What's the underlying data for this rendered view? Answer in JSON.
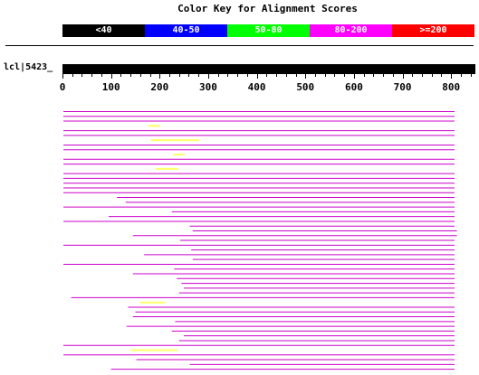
{
  "title": "Color Key for Alignment Scores",
  "color_key": [
    {
      "label": "<40",
      "bg": "#000000",
      "fg": "#ffffff"
    },
    {
      "label": "40-50",
      "bg": "#0000ff",
      "fg": "#ffffff"
    },
    {
      "label": "50-80",
      "bg": "#00ff00",
      "fg": "#ffffff"
    },
    {
      "label": "80-200",
      "bg": "#ff00ff",
      "fg": "#ffffff"
    },
    {
      "label": ">=200",
      "bg": "#ff0000",
      "fg": "#ffffff"
    }
  ],
  "query": {
    "label": "lcl|5423_",
    "length": 850
  },
  "axis": {
    "ticks": [
      0,
      100,
      200,
      300,
      400,
      500,
      600,
      700,
      800
    ],
    "max": 850
  },
  "colors": {
    "hit": "#cc00cc",
    "hit_alt": "#ffff66"
  },
  "hits": [
    {
      "start": 2,
      "end": 807,
      "color": "hit"
    },
    {
      "start": 2,
      "end": 807,
      "color": "hit"
    },
    {
      "start": 2,
      "end": 807,
      "color": "hit"
    },
    {
      "start": 177,
      "end": 201,
      "color": "hit_alt"
    },
    {
      "start": 2,
      "end": 807,
      "color": "hit"
    },
    {
      "start": 2,
      "end": 807,
      "color": "hit"
    },
    {
      "start": 182,
      "end": 282,
      "color": "hit_alt"
    },
    {
      "start": 2,
      "end": 807,
      "color": "hit"
    },
    {
      "start": 2,
      "end": 807,
      "color": "hit"
    },
    {
      "start": 228,
      "end": 252,
      "color": "hit_alt"
    },
    {
      "start": 2,
      "end": 807,
      "color": "hit"
    },
    {
      "start": 2,
      "end": 807,
      "color": "hit"
    },
    {
      "start": 192,
      "end": 238,
      "color": "hit_alt"
    },
    {
      "start": 2,
      "end": 807,
      "color": "hit"
    },
    {
      "start": 2,
      "end": 807,
      "color": "hit"
    },
    {
      "start": 2,
      "end": 807,
      "color": "hit"
    },
    {
      "start": 2,
      "end": 807,
      "color": "hit"
    },
    {
      "start": 2,
      "end": 807,
      "color": "hit"
    },
    {
      "start": 112,
      "end": 807,
      "color": "hit"
    },
    {
      "start": 130,
      "end": 807,
      "color": "hit"
    },
    {
      "start": 2,
      "end": 807,
      "color": "hit"
    },
    {
      "start": 225,
      "end": 807,
      "color": "hit"
    },
    {
      "start": 95,
      "end": 807,
      "color": "hit"
    },
    {
      "start": 2,
      "end": 807,
      "color": "hit"
    },
    {
      "start": 262,
      "end": 807,
      "color": "hit"
    },
    {
      "start": 268,
      "end": 812,
      "color": "hit"
    },
    {
      "start": 145,
      "end": 812,
      "color": "hit"
    },
    {
      "start": 242,
      "end": 807,
      "color": "hit"
    },
    {
      "start": 2,
      "end": 807,
      "color": "hit"
    },
    {
      "start": 265,
      "end": 807,
      "color": "hit"
    },
    {
      "start": 168,
      "end": 807,
      "color": "hit"
    },
    {
      "start": 268,
      "end": 807,
      "color": "hit"
    },
    {
      "start": 2,
      "end": 807,
      "color": "hit"
    },
    {
      "start": 230,
      "end": 807,
      "color": "hit"
    },
    {
      "start": 145,
      "end": 807,
      "color": "hit"
    },
    {
      "start": 235,
      "end": 807,
      "color": "hit"
    },
    {
      "start": 245,
      "end": 807,
      "color": "hit"
    },
    {
      "start": 250,
      "end": 807,
      "color": "hit"
    },
    {
      "start": 240,
      "end": 807,
      "color": "hit"
    },
    {
      "start": 18,
      "end": 807,
      "color": "hit"
    },
    {
      "start": 160,
      "end": 212,
      "color": "hit_alt"
    },
    {
      "start": 135,
      "end": 807,
      "color": "hit"
    },
    {
      "start": 150,
      "end": 807,
      "color": "hit"
    },
    {
      "start": 145,
      "end": 807,
      "color": "hit"
    },
    {
      "start": 232,
      "end": 807,
      "color": "hit"
    },
    {
      "start": 132,
      "end": 807,
      "color": "hit"
    },
    {
      "start": 225,
      "end": 807,
      "color": "hit"
    },
    {
      "start": 250,
      "end": 807,
      "color": "hit"
    },
    {
      "start": 240,
      "end": 807,
      "color": "hit"
    },
    {
      "start": 2,
      "end": 807,
      "color": "hit"
    },
    {
      "start": 140,
      "end": 237,
      "color": "hit_alt"
    },
    {
      "start": 2,
      "end": 807,
      "color": "hit"
    },
    {
      "start": 152,
      "end": 807,
      "color": "hit"
    },
    {
      "start": 262,
      "end": 807,
      "color": "hit"
    },
    {
      "start": 100,
      "end": 807,
      "color": "hit"
    }
  ]
}
